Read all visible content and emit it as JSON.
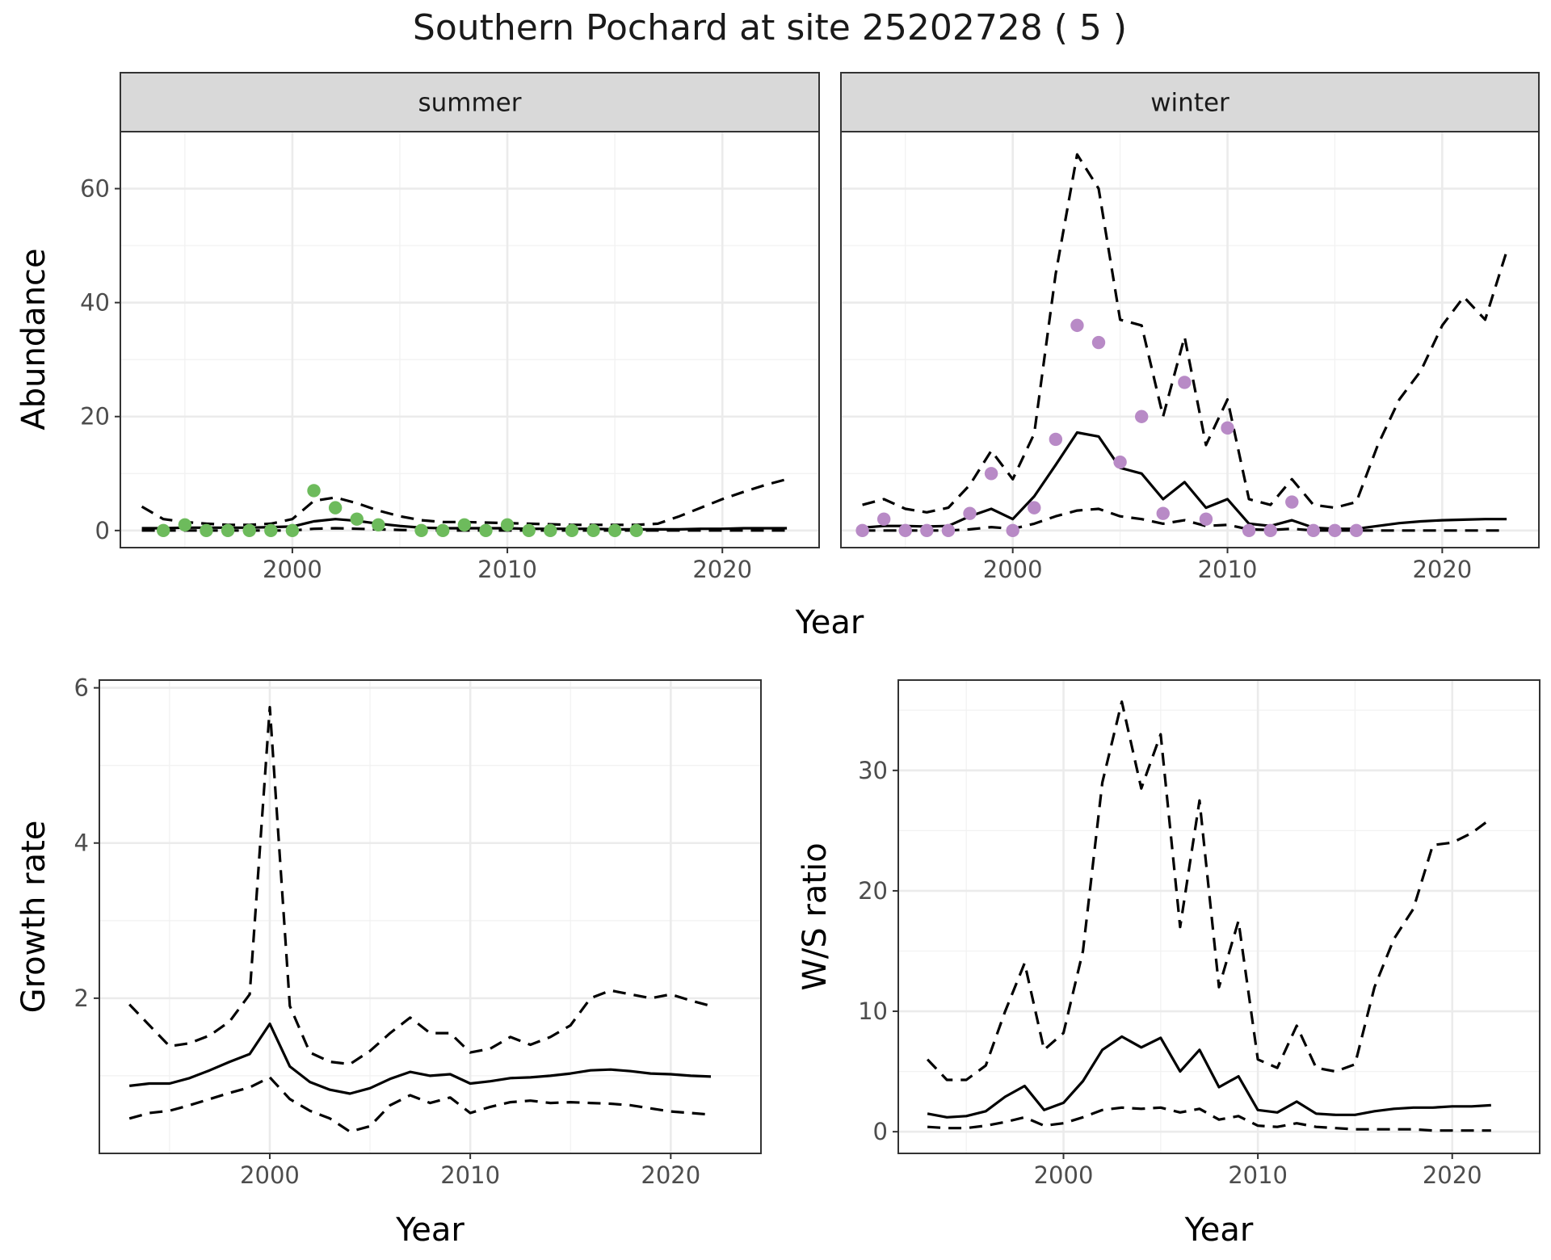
{
  "title": "Southern Pochard at site 25202728 ( 5 )",
  "colors": {
    "summer_points": "#6dbb5c",
    "winter_points": "#b88ac6",
    "lines": "#000000",
    "strip_fill": "#d9d9d9"
  },
  "chart_data": [
    {
      "id": "abundance",
      "type": "line",
      "facets": [
        "summer",
        "winter"
      ],
      "xlabel": "Year",
      "ylabel": "Abundance",
      "xlim": [
        1992,
        2024.5
      ],
      "ylim": [
        -3,
        70
      ],
      "xticks": [
        2000,
        2010,
        2020
      ],
      "yticks": [
        0,
        20,
        40,
        60
      ],
      "grid": true,
      "panels": [
        {
          "strip": "summer",
          "point_color": "#6dbb5c",
          "observed": {
            "x": [
              1994,
              1995,
              1996,
              1997,
              1998,
              1999,
              2000,
              2001,
              2002,
              2003,
              2004,
              2006,
              2007,
              2008,
              2009,
              2010,
              2011,
              2012,
              2013,
              2014,
              2015,
              2016
            ],
            "y": [
              0,
              1,
              0,
              0,
              0,
              0,
              0,
              7,
              4,
              2,
              1,
              0,
              0,
              1,
              0,
              1,
              0,
              0,
              0,
              0,
              0,
              0
            ]
          },
          "estimate": {
            "x": [
              1993,
              1994,
              1995,
              1996,
              1997,
              1998,
              1999,
              2000,
              2001,
              2002,
              2003,
              2004,
              2005,
              2006,
              2007,
              2008,
              2009,
              2010,
              2011,
              2012,
              2013,
              2014,
              2015,
              2016,
              2017,
              2018,
              2019,
              2020,
              2021,
              2022,
              2023
            ],
            "y": [
              0.4,
              0.4,
              0.5,
              0.5,
              0.5,
              0.5,
              0.6,
              0.7,
              1.6,
              2.0,
              1.7,
              1.2,
              0.8,
              0.5,
              0.4,
              0.4,
              0.4,
              0.4,
              0.3,
              0.3,
              0.3,
              0.3,
              0.2,
              0.2,
              0.2,
              0.2,
              0.3,
              0.3,
              0.4,
              0.4,
              0.4
            ]
          },
          "upper": {
            "x": [
              1993,
              1994,
              1995,
              1996,
              1997,
              1998,
              1999,
              2000,
              2001,
              2002,
              2003,
              2004,
              2005,
              2006,
              2007,
              2008,
              2009,
              2010,
              2011,
              2012,
              2013,
              2014,
              2015,
              2016,
              2017,
              2018,
              2019,
              2020,
              2021,
              2022,
              2023
            ],
            "y": [
              4.2,
              2.0,
              1.5,
              1.2,
              1.0,
              1.0,
              1.2,
              2.0,
              5.2,
              5.8,
              4.8,
              3.5,
              2.5,
              1.8,
              1.5,
              1.5,
              1.4,
              1.3,
              1.2,
              1.1,
              1.0,
              1.0,
              1.0,
              1.0,
              1.2,
              2.5,
              4.0,
              5.5,
              6.8,
              8.0,
              9.0
            ]
          },
          "lower": {
            "x": [
              1993,
              1994,
              1995,
              1996,
              1997,
              1998,
              1999,
              2000,
              2001,
              2002,
              2003,
              2004,
              2005,
              2006,
              2007,
              2008,
              2009,
              2010,
              2011,
              2012,
              2013,
              2014,
              2015,
              2016,
              2017,
              2018,
              2019,
              2020,
              2021,
              2022,
              2023
            ],
            "y": [
              0,
              0,
              0,
              0,
              0,
              0,
              0,
              0,
              0.3,
              0.4,
              0.3,
              0.2,
              0.1,
              0,
              0,
              0,
              0,
              0,
              0,
              0,
              0,
              0,
              0,
              0,
              0,
              0,
              0,
              0,
              0,
              0,
              0
            ]
          }
        },
        {
          "strip": "winter",
          "point_color": "#b88ac6",
          "observed": {
            "x": [
              1993,
              1994,
              1995,
              1996,
              1997,
              1998,
              1999,
              2000,
              2001,
              2002,
              2003,
              2004,
              2005,
              2006,
              2007,
              2008,
              2009,
              2010,
              2011,
              2012,
              2013,
              2014,
              2015,
              2016
            ],
            "y": [
              0,
              2,
              0,
              0,
              0,
              3,
              10,
              0,
              4,
              16,
              36,
              33,
              12,
              20,
              3,
              26,
              2,
              18,
              0,
              0,
              5,
              0,
              0,
              0
            ]
          },
          "estimate": {
            "x": [
              1993,
              1994,
              1995,
              1996,
              1997,
              1998,
              1999,
              2000,
              2001,
              2002,
              2003,
              2004,
              2005,
              2006,
              2007,
              2008,
              2009,
              2010,
              2011,
              2012,
              2013,
              2014,
              2015,
              2016,
              2017,
              2018,
              2019,
              2020,
              2021,
              2022,
              2023
            ],
            "y": [
              0.5,
              0.8,
              0.8,
              0.7,
              0.8,
              2.5,
              3.8,
              2.0,
              6.0,
              11.5,
              17.2,
              16.5,
              11.0,
              10.0,
              5.5,
              8.5,
              4.0,
              5.5,
              1.2,
              0.8,
              1.8,
              0.5,
              0.3,
              0.3,
              0.8,
              1.3,
              1.6,
              1.8,
              1.9,
              2.0,
              2.0
            ]
          },
          "upper": {
            "x": [
              1993,
              1994,
              1995,
              1996,
              1997,
              1998,
              1999,
              2000,
              2001,
              2002,
              2003,
              2004,
              2005,
              2006,
              2007,
              2008,
              2009,
              2010,
              2011,
              2012,
              2013,
              2014,
              2015,
              2016,
              2017,
              2018,
              2019,
              2020,
              2021,
              2022,
              2023
            ],
            "y": [
              4.5,
              5.5,
              3.8,
              3.2,
              4.0,
              8.0,
              14.0,
              9.0,
              17.0,
              45.0,
              66.0,
              60.0,
              37.0,
              36.0,
              20.0,
              34.0,
              15.0,
              23.0,
              5.5,
              4.5,
              9.0,
              4.5,
              4.0,
              5.0,
              15.0,
              23.0,
              28.0,
              36.0,
              41.0,
              37.0,
              49.0
            ]
          },
          "lower": {
            "x": [
              1993,
              1994,
              1995,
              1996,
              1997,
              1998,
              1999,
              2000,
              2001,
              2002,
              2003,
              2004,
              2005,
              2006,
              2007,
              2008,
              2009,
              2010,
              2011,
              2012,
              2013,
              2014,
              2015,
              2016,
              2017,
              2018,
              2019,
              2020,
              2021,
              2022,
              2023
            ],
            "y": [
              0,
              0,
              0,
              0,
              0,
              0.2,
              0.6,
              0.3,
              1.2,
              2.5,
              3.5,
              3.8,
              2.5,
              2.0,
              1.2,
              1.8,
              0.8,
              1.0,
              0.2,
              0.1,
              0.3,
              0,
              0,
              0,
              0,
              0,
              0,
              0,
              0,
              0,
              0
            ]
          }
        }
      ]
    },
    {
      "id": "growth",
      "type": "line",
      "xlabel": "Year",
      "ylabel": "Growth rate",
      "xlim": [
        1991.5,
        2024.5
      ],
      "ylim": [
        0,
        6.1
      ],
      "xticks": [
        2000,
        2010,
        2020
      ],
      "yticks": [
        2,
        4,
        6
      ],
      "grid": true,
      "estimate": {
        "x": [
          1993,
          1994,
          1995,
          1996,
          1997,
          1998,
          1999,
          2000,
          2001,
          2002,
          2003,
          2004,
          2005,
          2006,
          2007,
          2008,
          2009,
          2010,
          2011,
          2012,
          2013,
          2014,
          2015,
          2016,
          2017,
          2018,
          2019,
          2020,
          2021,
          2022
        ],
        "y": [
          0.87,
          0.9,
          0.9,
          0.97,
          1.07,
          1.18,
          1.28,
          1.67,
          1.12,
          0.92,
          0.82,
          0.77,
          0.84,
          0.96,
          1.05,
          1.0,
          1.02,
          0.9,
          0.93,
          0.97,
          0.98,
          1.0,
          1.03,
          1.07,
          1.08,
          1.06,
          1.03,
          1.02,
          1.0,
          0.99
        ]
      },
      "upper": {
        "x": [
          1993,
          1994,
          1995,
          1996,
          1997,
          1998,
          1999,
          2000,
          2001,
          2002,
          2003,
          2004,
          2005,
          2006,
          2007,
          2008,
          2009,
          2010,
          2011,
          2012,
          2013,
          2014,
          2015,
          2016,
          2017,
          2018,
          2019,
          2020,
          2021,
          2022
        ],
        "y": [
          1.92,
          1.65,
          1.38,
          1.42,
          1.52,
          1.7,
          2.05,
          5.75,
          1.9,
          1.3,
          1.18,
          1.15,
          1.32,
          1.55,
          1.75,
          1.55,
          1.55,
          1.3,
          1.35,
          1.5,
          1.4,
          1.5,
          1.65,
          2.0,
          2.1,
          2.05,
          2.0,
          2.05,
          1.97,
          1.9
        ]
      },
      "lower": {
        "x": [
          1993,
          1994,
          1995,
          1996,
          1997,
          1998,
          1999,
          2000,
          2001,
          2002,
          2003,
          2004,
          2005,
          2006,
          2007,
          2008,
          2009,
          2010,
          2011,
          2012,
          2013,
          2014,
          2015,
          2016,
          2017,
          2018,
          2019,
          2020,
          2021,
          2022
        ],
        "y": [
          0.45,
          0.52,
          0.55,
          0.62,
          0.7,
          0.78,
          0.85,
          0.98,
          0.7,
          0.55,
          0.45,
          0.28,
          0.35,
          0.62,
          0.75,
          0.65,
          0.72,
          0.52,
          0.6,
          0.66,
          0.68,
          0.65,
          0.66,
          0.65,
          0.64,
          0.62,
          0.58,
          0.54,
          0.52,
          0.5
        ]
      }
    },
    {
      "id": "ws-ratio",
      "type": "line",
      "xlabel": "Year",
      "ylabel": "W/S ratio",
      "xlim": [
        1991.5,
        2024.5
      ],
      "ylim": [
        -1.8,
        37.5
      ],
      "xticks": [
        2000,
        2010,
        2020
      ],
      "yticks": [
        0,
        10,
        20,
        30
      ],
      "grid": true,
      "estimate": {
        "x": [
          1993,
          1994,
          1995,
          1996,
          1997,
          1998,
          1999,
          2000,
          2001,
          2002,
          2003,
          2004,
          2005,
          2006,
          2007,
          2008,
          2009,
          2010,
          2011,
          2012,
          2013,
          2014,
          2015,
          2016,
          2017,
          2018,
          2019,
          2020,
          2021,
          2022
        ],
        "y": [
          1.5,
          1.2,
          1.3,
          1.7,
          2.9,
          3.8,
          1.8,
          2.4,
          4.2,
          6.8,
          7.9,
          7.0,
          7.8,
          5.0,
          6.8,
          3.7,
          4.6,
          1.8,
          1.6,
          2.5,
          1.5,
          1.4,
          1.4,
          1.7,
          1.9,
          2.0,
          2.0,
          2.1,
          2.1,
          2.2
        ]
      },
      "upper": {
        "x": [
          1993,
          1994,
          1995,
          1996,
          1997,
          1998,
          1999,
          2000,
          2001,
          2002,
          2003,
          2004,
          2005,
          2006,
          2007,
          2008,
          2009,
          2010,
          2011,
          2012,
          2013,
          2014,
          2015,
          2016,
          2017,
          2018,
          2019,
          2020,
          2021,
          2022
        ],
        "y": [
          6.0,
          4.3,
          4.3,
          5.5,
          10.0,
          14.0,
          6.8,
          8.2,
          15.0,
          29.0,
          35.7,
          28.5,
          33.0,
          17.0,
          27.5,
          12.0,
          17.5,
          6.0,
          5.3,
          8.8,
          5.3,
          5.0,
          5.6,
          12.0,
          16.0,
          18.5,
          23.8,
          24.0,
          24.8,
          26.0
        ]
      },
      "lower": {
        "x": [
          1993,
          1994,
          1995,
          1996,
          1997,
          1998,
          1999,
          2000,
          2001,
          2002,
          2003,
          2004,
          2005,
          2006,
          2007,
          2008,
          2009,
          2010,
          2011,
          2012,
          2013,
          2014,
          2015,
          2016,
          2017,
          2018,
          2019,
          2020,
          2021,
          2022
        ],
        "y": [
          0.4,
          0.3,
          0.3,
          0.5,
          0.8,
          1.2,
          0.5,
          0.7,
          1.2,
          1.8,
          2.0,
          1.9,
          2.0,
          1.6,
          1.9,
          1.0,
          1.3,
          0.5,
          0.4,
          0.7,
          0.4,
          0.3,
          0.2,
          0.2,
          0.2,
          0.2,
          0.1,
          0.1,
          0.1,
          0.1
        ]
      }
    }
  ]
}
